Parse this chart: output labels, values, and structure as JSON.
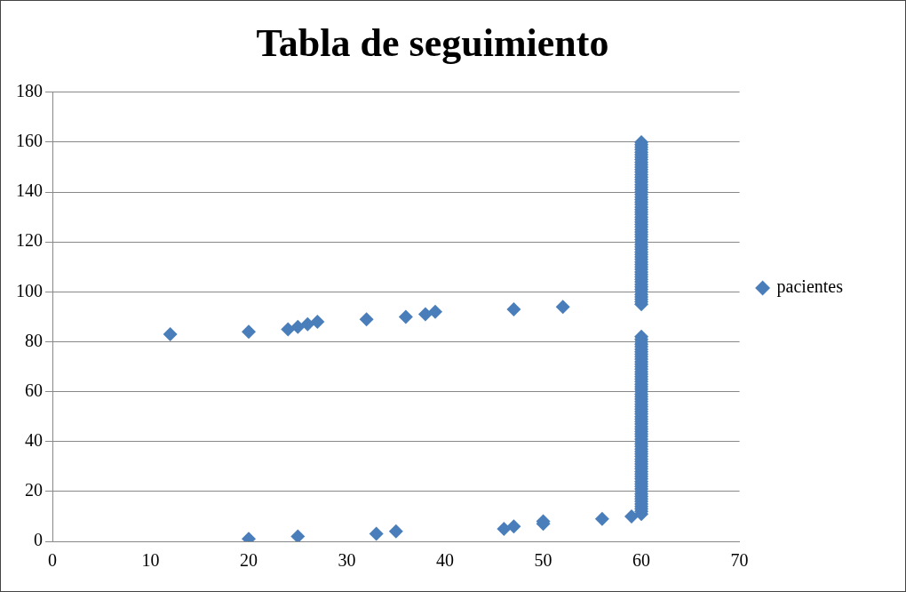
{
  "chart_data": {
    "type": "scatter",
    "title": "Tabla de seguimiento",
    "marker": "diamond",
    "legend": "right",
    "grid": "y",
    "xlim": [
      0,
      70
    ],
    "xticks": [
      0,
      10,
      20,
      30,
      40,
      50,
      60,
      70
    ],
    "ylim": [
      0,
      180
    ],
    "yticks": [
      0,
      20,
      40,
      60,
      80,
      100,
      120,
      140,
      160,
      180
    ],
    "series": [
      {
        "name": "pacientes",
        "color": "#4a7ebb",
        "x": [
          12,
          20,
          24,
          25,
          26,
          27,
          32,
          36,
          38,
          39,
          47,
          52,
          20,
          25,
          33,
          35,
          46,
          47,
          50,
          50,
          56,
          59,
          60,
          60,
          60,
          60,
          60,
          60,
          60,
          60,
          60,
          60,
          60,
          60,
          60,
          60,
          60,
          60,
          60,
          60,
          60,
          60,
          60,
          60,
          60,
          60,
          60,
          60,
          60,
          60,
          60,
          60,
          60,
          60,
          60,
          60,
          60,
          60,
          60,
          60,
          60,
          60,
          60,
          60,
          60,
          60,
          60,
          60,
          60,
          60,
          60,
          60,
          60,
          60,
          60,
          60,
          60,
          60,
          60,
          60,
          60,
          60,
          60,
          60,
          60,
          60,
          60,
          60,
          60,
          60,
          60,
          60,
          60,
          60,
          60,
          60,
          60,
          60,
          60,
          60,
          60,
          60,
          60,
          60,
          60,
          60,
          60,
          60,
          60,
          60,
          60,
          60,
          60,
          60,
          60,
          60,
          60,
          60,
          60,
          60,
          60,
          60,
          60,
          60,
          60,
          60,
          60,
          60,
          60,
          60,
          60,
          60,
          60,
          60,
          60,
          60,
          60,
          60,
          60,
          60,
          60,
          60,
          60,
          60,
          60,
          60,
          60,
          60,
          60,
          60,
          60,
          60,
          60,
          60,
          60,
          60,
          60,
          60,
          60,
          60
        ],
        "values": [
          83,
          84,
          85,
          86,
          87,
          88,
          89,
          90,
          91,
          92,
          93,
          94,
          1,
          2,
          3,
          4,
          5,
          6,
          7,
          8,
          9,
          10,
          11,
          12,
          13,
          14,
          15,
          16,
          17,
          18,
          19,
          20,
          21,
          22,
          23,
          24,
          25,
          26,
          27,
          28,
          29,
          30,
          31,
          32,
          33,
          34,
          35,
          36,
          37,
          38,
          39,
          40,
          41,
          42,
          43,
          44,
          45,
          46,
          47,
          48,
          49,
          50,
          51,
          52,
          53,
          54,
          55,
          56,
          57,
          58,
          59,
          60,
          61,
          62,
          63,
          64,
          65,
          66,
          67,
          68,
          69,
          70,
          71,
          72,
          73,
          74,
          75,
          76,
          77,
          78,
          79,
          80,
          81,
          82,
          95,
          96,
          97,
          98,
          99,
          100,
          101,
          102,
          103,
          104,
          105,
          106,
          107,
          108,
          109,
          110,
          111,
          112,
          113,
          114,
          115,
          116,
          117,
          118,
          119,
          120,
          121,
          122,
          123,
          124,
          125,
          126,
          127,
          128,
          129,
          130,
          131,
          132,
          133,
          134,
          135,
          136,
          137,
          138,
          139,
          140,
          141,
          142,
          143,
          144,
          145,
          146,
          147,
          148,
          149,
          150,
          151,
          152,
          153,
          154,
          155,
          156,
          157,
          158,
          159,
          160
        ]
      }
    ]
  }
}
